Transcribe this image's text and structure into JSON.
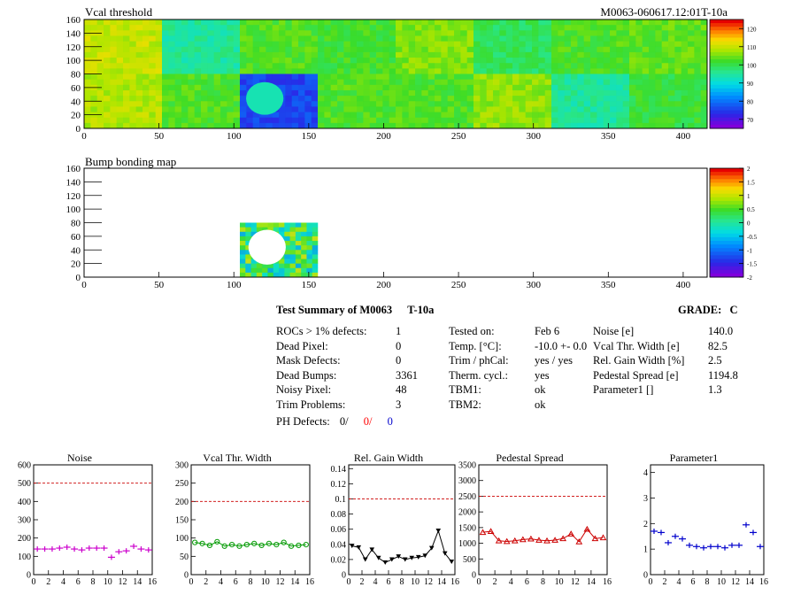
{
  "header": {
    "map_title": "Vcal threshold",
    "module_label": "M0063-060617.12:01T-10a"
  },
  "maps": [
    {
      "id": "vcal",
      "title": "Vcal threshold",
      "x_ticks": [
        "0",
        "50",
        "100",
        "150",
        "200",
        "250",
        "300",
        "350",
        "400"
      ],
      "y_ticks": [
        "0",
        "20",
        "40",
        "60",
        "80",
        "100",
        "120",
        "140",
        "160"
      ],
      "xlim": [
        0,
        416
      ],
      "ylim": [
        0,
        160
      ],
      "colorbar": {
        "ticks": [
          "120",
          "110",
          "100",
          "90",
          "80",
          "70"
        ],
        "range": [
          65,
          125
        ]
      },
      "roc_values": {
        "top": [
          110,
          95,
          103,
          102,
          106,
          99,
          103,
          104
        ],
        "bottom": [
          109,
          103,
          75,
          103,
          103,
          107,
          95,
          101
        ]
      },
      "defect_circle_roc": "bottom-3"
    },
    {
      "id": "bump",
      "title": "Bump bonding map",
      "x_ticks": [
        "0",
        "50",
        "100",
        "150",
        "200",
        "250",
        "300",
        "350",
        "400"
      ],
      "y_ticks": [
        "0",
        "20",
        "40",
        "60",
        "80",
        "100",
        "120",
        "140",
        "160"
      ],
      "xlim": [
        0,
        416
      ],
      "ylim": [
        0,
        160
      ],
      "colorbar": {
        "ticks": [
          "2",
          "1.5",
          "1",
          "0.5",
          "0",
          "-0.5",
          "-1",
          "-1.5",
          "-2"
        ],
        "range": [
          -2,
          2
        ]
      },
      "filled_roc": "bottom-3"
    }
  ],
  "summary": {
    "title": "Test Summary of M0063",
    "temp_label": "T-10a",
    "grade_label": "GRADE:",
    "grade_value": "C",
    "col1": [
      {
        "label": "ROCs > 1% defects:",
        "value": "1"
      },
      {
        "label": "Dead Pixel:",
        "value": "0"
      },
      {
        "label": "Mask Defects:",
        "value": "0"
      },
      {
        "label": "Dead Bumps:",
        "value": "3361"
      },
      {
        "label": "Noisy Pixel:",
        "value": "48"
      },
      {
        "label": "Trim Problems:",
        "value": "3"
      }
    ],
    "ph_defects": {
      "label": "PH Defects:",
      "v1": "0/",
      "v2": "0/",
      "v3": "0",
      "c2": "#ff0000",
      "c3": "#0000cc"
    },
    "col2": [
      {
        "label": "Tested on:",
        "value": "Feb 6"
      },
      {
        "label": "Temp. [°C]:",
        "value": "-10.0 +- 0.0"
      },
      {
        "label": "Trim / phCal:",
        "value": "yes / yes"
      },
      {
        "label": "Therm. cycl.:",
        "value": "yes"
      },
      {
        "label": "TBM1:",
        "value": "ok"
      },
      {
        "label": "TBM2:",
        "value": "ok"
      }
    ],
    "col3": [
      {
        "label": "Noise [e]",
        "value": "140.0"
      },
      {
        "label": "Vcal Thr. Width [e]",
        "value": "82.5"
      },
      {
        "label": "Rel. Gain Width [%]",
        "value": "2.5"
      },
      {
        "label": "Pedestal Spread [e]",
        "value": "1194.8"
      },
      {
        "label": "Parameter1 []",
        "value": "1.3"
      }
    ]
  },
  "chart_data": [
    {
      "type": "scatter",
      "title": "Noise",
      "color": "#cc00cc",
      "marker": "cross",
      "connect": false,
      "x": [
        0,
        1,
        2,
        3,
        4,
        5,
        6,
        7,
        8,
        9,
        10,
        11,
        12,
        13,
        14,
        15
      ],
      "y": [
        140,
        140,
        140,
        145,
        150,
        140,
        135,
        145,
        145,
        145,
        95,
        125,
        130,
        155,
        140,
        135
      ],
      "ylim": [
        0,
        600
      ],
      "xlim": [
        0,
        16
      ],
      "ref": 500,
      "y_ticks": [
        "0",
        "100",
        "200",
        "300",
        "400",
        "500",
        "600"
      ],
      "x_ticks": [
        "0",
        "2",
        "4",
        "6",
        "8",
        "10",
        "12",
        "14",
        "16"
      ]
    },
    {
      "type": "line",
      "title": "Vcal Thr. Width",
      "color": "#009900",
      "marker": "circle",
      "connect": true,
      "x": [
        0,
        1,
        2,
        3,
        4,
        5,
        6,
        7,
        8,
        9,
        10,
        11,
        12,
        13,
        14,
        15
      ],
      "y": [
        88,
        85,
        80,
        90,
        78,
        82,
        78,
        82,
        85,
        80,
        85,
        82,
        88,
        78,
        80,
        82
      ],
      "ylim": [
        0,
        300
      ],
      "xlim": [
        0,
        16
      ],
      "ref": 200,
      "y_ticks": [
        "0",
        "50",
        "100",
        "150",
        "200",
        "250",
        "300"
      ],
      "x_ticks": [
        "0",
        "2",
        "4",
        "6",
        "8",
        "10",
        "12",
        "14",
        "16"
      ]
    },
    {
      "type": "line",
      "title": "Rel. Gain Width",
      "color": "#000000",
      "marker": "triangle-down",
      "connect": true,
      "x": [
        0,
        1,
        2,
        3,
        4,
        5,
        6,
        7,
        8,
        9,
        10,
        11,
        12,
        13,
        14,
        15
      ],
      "y": [
        0.038,
        0.036,
        0.02,
        0.033,
        0.022,
        0.016,
        0.02,
        0.024,
        0.02,
        0.022,
        0.023,
        0.025,
        0.035,
        0.058,
        0.028,
        0.017
      ],
      "ylim": [
        0,
        0.145
      ],
      "xlim": [
        0,
        16
      ],
      "ref": 0.1,
      "y_ticks": [
        "0",
        "0.02",
        "0.04",
        "0.06",
        "0.08",
        "0.1",
        "0.12",
        "0.14"
      ],
      "x_ticks": [
        "0",
        "2",
        "4",
        "6",
        "8",
        "10",
        "12",
        "14",
        "16"
      ]
    },
    {
      "type": "line",
      "title": "Pedestal Spread",
      "color": "#cc0000",
      "marker": "triangle-up",
      "connect": true,
      "x": [
        0,
        1,
        2,
        3,
        4,
        5,
        6,
        7,
        8,
        9,
        10,
        11,
        12,
        13,
        14,
        15
      ],
      "y": [
        1350,
        1380,
        1080,
        1060,
        1080,
        1120,
        1140,
        1100,
        1080,
        1100,
        1150,
        1300,
        1050,
        1450,
        1150,
        1180
      ],
      "ylim": [
        0,
        3500
      ],
      "xlim": [
        0,
        16
      ],
      "ref": 2500,
      "y_ticks": [
        "0",
        "500",
        "1000",
        "1500",
        "2000",
        "2500",
        "3000",
        "3500"
      ],
      "x_ticks": [
        "0",
        "2",
        "4",
        "6",
        "8",
        "10",
        "12",
        "14",
        "16"
      ]
    },
    {
      "type": "scatter",
      "title": "Parameter1",
      "color": "#0000cc",
      "marker": "cross",
      "connect": false,
      "x": [
        0,
        1,
        2,
        3,
        4,
        5,
        6,
        7,
        8,
        9,
        10,
        11,
        12,
        13,
        14,
        15
      ],
      "y": [
        1.7,
        1.65,
        1.25,
        1.5,
        1.4,
        1.15,
        1.1,
        1.05,
        1.1,
        1.1,
        1.05,
        1.15,
        1.15,
        1.95,
        1.65,
        1.1
      ],
      "ylim": [
        0,
        4.3
      ],
      "xlim": [
        0,
        16
      ],
      "ref": null,
      "y_ticks": [
        "0",
        "1",
        "2",
        "3",
        "4"
      ],
      "x_ticks": [
        "0",
        "2",
        "4",
        "6",
        "8",
        "10",
        "12",
        "14",
        "16"
      ]
    }
  ]
}
